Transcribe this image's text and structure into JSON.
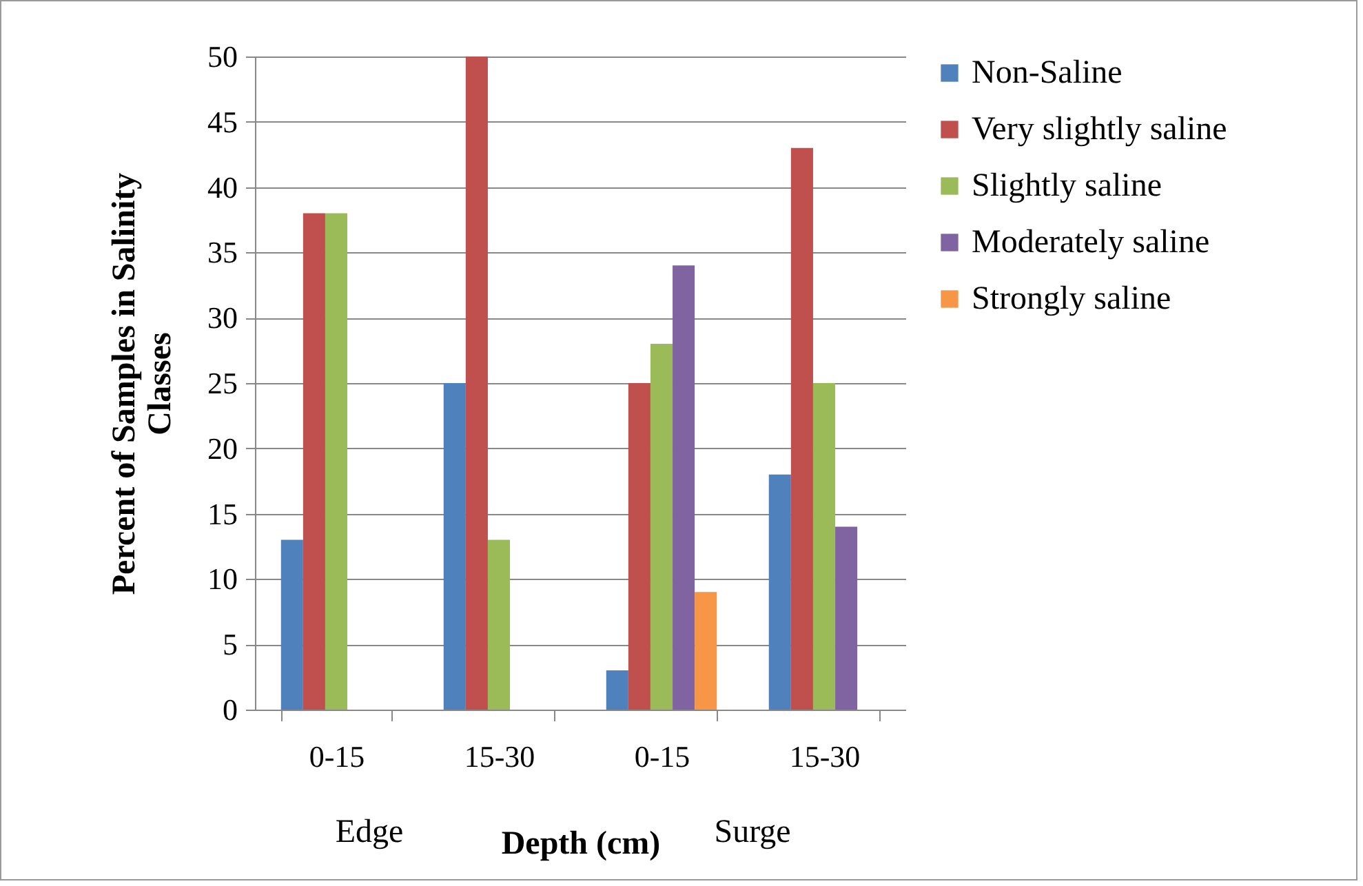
{
  "chart_data": {
    "type": "bar",
    "xlabel": "Depth (cm)",
    "ylabel": "Percent of Samples in Salinity Classes",
    "categories": [
      "0-15",
      "15-30",
      "0-15",
      "15-30"
    ],
    "series": [
      {
        "name": "Non-Saline",
        "color": "#4f81bd",
        "values": [
          13,
          25,
          3,
          18
        ]
      },
      {
        "name": "Very slightly saline",
        "color": "#c0504d",
        "values": [
          38,
          50,
          25,
          43
        ]
      },
      {
        "name": "Slightly saline",
        "color": "#9bbb59",
        "values": [
          38,
          13,
          28,
          25
        ]
      },
      {
        "name": "Moderately saline",
        "color": "#8064a2",
        "values": [
          null,
          null,
          34,
          14
        ]
      },
      {
        "name": "Strongly saline",
        "color": "#f79646",
        "values": [
          null,
          null,
          9,
          null
        ]
      }
    ],
    "ylim": [
      0,
      50
    ],
    "yticks": [
      0,
      5,
      10,
      15,
      20,
      25,
      30,
      35,
      40,
      45,
      50
    ],
    "grid": "y",
    "legend": "right",
    "annotations": [
      "Edge",
      "Surge"
    ]
  }
}
